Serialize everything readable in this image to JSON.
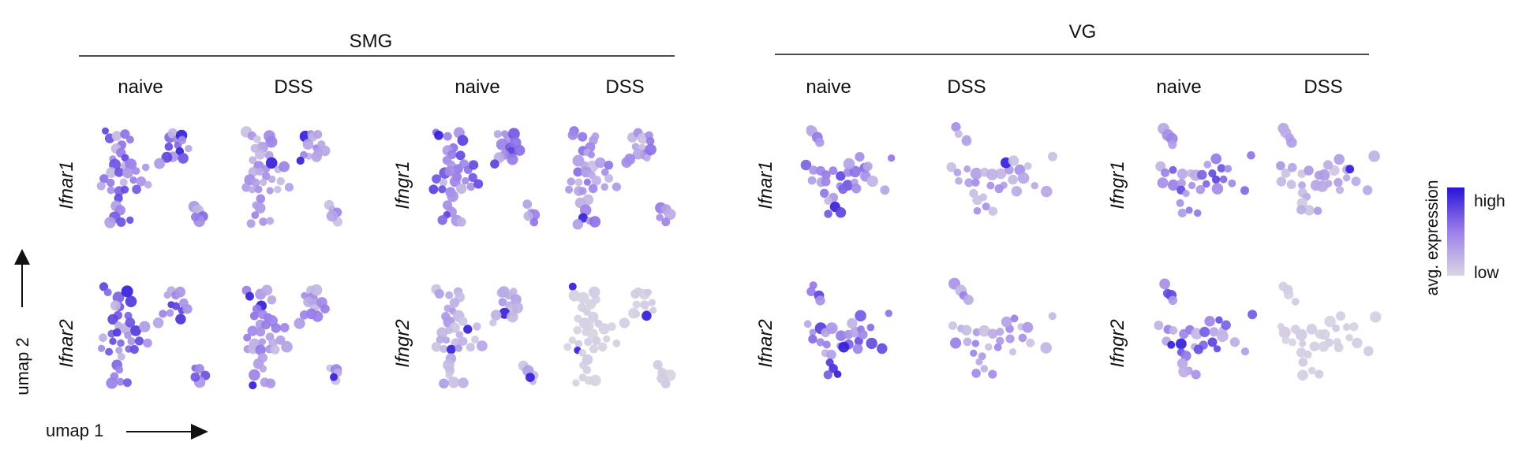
{
  "figure": {
    "groups": [
      {
        "id": "smg",
        "label": "SMG"
      },
      {
        "id": "vg",
        "label": "VG"
      }
    ],
    "conditions": [
      "naive",
      "DSS"
    ],
    "genes": {
      "smg": {
        "left": [
          "Ifnar1",
          "Ifnar2"
        ],
        "right": [
          "Ifngr1",
          "Ifngr2"
        ]
      },
      "vg": {
        "left": [
          "Ifnar1",
          "Ifnar2"
        ],
        "right": [
          "Ifngr1",
          "Ifngr2"
        ]
      }
    },
    "axes": {
      "x_label": "umap 1",
      "y_label": "umap 2"
    },
    "legend": {
      "title": "avg. expression",
      "high": "high",
      "low": "low"
    }
  },
  "chart_data": {
    "type": "scatter",
    "description_free": true,
    "color_scale": {
      "low": "#d9d6e2",
      "mid": "#9b7fe8",
      "high": "#2a14d6"
    },
    "shapes": {
      "smg": [
        [
          0.1,
          0.05
        ],
        [
          0.12,
          0.1
        ],
        [
          0.2,
          0.12
        ],
        [
          0.28,
          0.08
        ],
        [
          0.3,
          0.15
        ],
        [
          0.24,
          0.2
        ],
        [
          0.18,
          0.22
        ],
        [
          0.22,
          0.28
        ],
        [
          0.28,
          0.3
        ],
        [
          0.16,
          0.32
        ],
        [
          0.2,
          0.38
        ],
        [
          0.26,
          0.4
        ],
        [
          0.32,
          0.36
        ],
        [
          0.14,
          0.45
        ],
        [
          0.2,
          0.46
        ],
        [
          0.28,
          0.48
        ],
        [
          0.36,
          0.44
        ],
        [
          0.42,
          0.4
        ],
        [
          0.1,
          0.52
        ],
        [
          0.16,
          0.55
        ],
        [
          0.24,
          0.55
        ],
        [
          0.32,
          0.54
        ],
        [
          0.4,
          0.52
        ],
        [
          0.08,
          0.6
        ],
        [
          0.14,
          0.62
        ],
        [
          0.2,
          0.64
        ],
        [
          0.28,
          0.62
        ],
        [
          0.36,
          0.6
        ],
        [
          0.46,
          0.58
        ],
        [
          0.22,
          0.7
        ],
        [
          0.18,
          0.76
        ],
        [
          0.22,
          0.82
        ],
        [
          0.18,
          0.88
        ],
        [
          0.24,
          0.92
        ],
        [
          0.3,
          0.92
        ],
        [
          0.14,
          0.94
        ],
        [
          0.62,
          0.1
        ],
        [
          0.66,
          0.06
        ],
        [
          0.7,
          0.12
        ],
        [
          0.74,
          0.08
        ],
        [
          0.64,
          0.18
        ],
        [
          0.7,
          0.2
        ],
        [
          0.76,
          0.16
        ],
        [
          0.72,
          0.26
        ],
        [
          0.66,
          0.28
        ],
        [
          0.6,
          0.3
        ],
        [
          0.56,
          0.36
        ],
        [
          0.74,
          0.32
        ],
        [
          0.78,
          0.24
        ],
        [
          0.84,
          0.78
        ],
        [
          0.88,
          0.82
        ],
        [
          0.92,
          0.86
        ],
        [
          0.9,
          0.92
        ],
        [
          0.86,
          0.88
        ]
      ],
      "vg": [
        [
          0.14,
          0.02
        ],
        [
          0.16,
          0.07
        ],
        [
          0.2,
          0.11
        ],
        [
          0.22,
          0.16
        ],
        [
          0.1,
          0.4
        ],
        [
          0.16,
          0.44
        ],
        [
          0.22,
          0.42
        ],
        [
          0.3,
          0.46
        ],
        [
          0.36,
          0.44
        ],
        [
          0.42,
          0.48
        ],
        [
          0.48,
          0.46
        ],
        [
          0.56,
          0.44
        ],
        [
          0.64,
          0.42
        ],
        [
          0.7,
          0.4
        ],
        [
          0.14,
          0.54
        ],
        [
          0.22,
          0.56
        ],
        [
          0.3,
          0.56
        ],
        [
          0.4,
          0.58
        ],
        [
          0.5,
          0.56
        ],
        [
          0.58,
          0.54
        ],
        [
          0.28,
          0.64
        ],
        [
          0.34,
          0.68
        ],
        [
          0.3,
          0.74
        ],
        [
          0.36,
          0.8
        ],
        [
          0.42,
          0.84
        ],
        [
          0.3,
          0.84
        ],
        [
          0.46,
          0.6
        ],
        [
          0.52,
          0.36
        ],
        [
          0.6,
          0.32
        ],
        [
          0.66,
          0.5
        ],
        [
          0.9,
          0.3
        ],
        [
          0.74,
          0.56
        ],
        [
          0.84,
          0.62
        ],
        [
          0.6,
          0.62
        ]
      ]
    },
    "panels": [
      {
        "group": "smg",
        "gene": "Ifnar1",
        "condition": "naive",
        "level": 0.55
      },
      {
        "group": "smg",
        "gene": "Ifnar1",
        "condition": "DSS",
        "level": 0.35
      },
      {
        "group": "smg",
        "gene": "Ifngr1",
        "condition": "naive",
        "level": 0.55
      },
      {
        "group": "smg",
        "gene": "Ifngr1",
        "condition": "DSS",
        "level": 0.4
      },
      {
        "group": "smg",
        "gene": "Ifnar2",
        "condition": "naive",
        "level": 0.6
      },
      {
        "group": "smg",
        "gene": "Ifnar2",
        "condition": "DSS",
        "level": 0.4
      },
      {
        "group": "smg",
        "gene": "Ifngr2",
        "condition": "naive",
        "level": 0.25
      },
      {
        "group": "smg",
        "gene": "Ifngr2",
        "condition": "DSS",
        "level": 0.05
      },
      {
        "group": "vg",
        "gene": "Ifnar1",
        "condition": "naive",
        "level": 0.55
      },
      {
        "group": "vg",
        "gene": "Ifnar1",
        "condition": "DSS",
        "level": 0.3
      },
      {
        "group": "vg",
        "gene": "Ifngr1",
        "condition": "naive",
        "level": 0.55
      },
      {
        "group": "vg",
        "gene": "Ifngr1",
        "condition": "DSS",
        "level": 0.25
      },
      {
        "group": "vg",
        "gene": "Ifnar2",
        "condition": "naive",
        "level": 0.6
      },
      {
        "group": "vg",
        "gene": "Ifnar2",
        "condition": "DSS",
        "level": 0.35
      },
      {
        "group": "vg",
        "gene": "Ifngr2",
        "condition": "naive",
        "level": 0.55
      },
      {
        "group": "vg",
        "gene": "Ifngr2",
        "condition": "DSS",
        "level": 0.05
      }
    ]
  }
}
